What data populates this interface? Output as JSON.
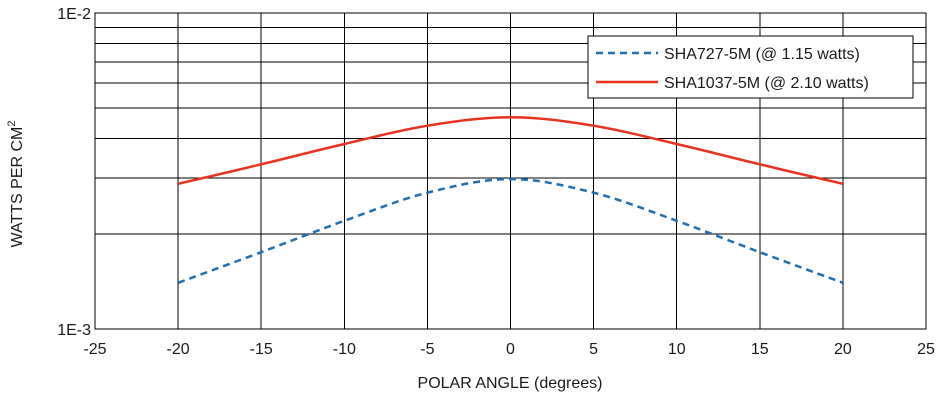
{
  "chart_data": {
    "type": "line",
    "title": "",
    "xlabel": "POLAR ANGLE (degrees)",
    "ylabel": "WATTS PER CM",
    "ylabel_superscript": "2",
    "xlim": [
      -25,
      25
    ],
    "ylim": [
      0.001,
      0.01
    ],
    "yscale": "log",
    "grid": true,
    "x_ticks": [
      "-25",
      "-20",
      "-15",
      "-10",
      "-5",
      "0",
      "5",
      "10",
      "15",
      "20",
      "25"
    ],
    "x_tick_values": [
      -25,
      -20,
      -15,
      -10,
      -5,
      0,
      5,
      10,
      15,
      20,
      25
    ],
    "y_ticks": [
      "1E-3",
      "1E-2"
    ],
    "y_tick_values": [
      0.001,
      0.01
    ],
    "y_gridlines": [
      0.001,
      0.002,
      0.003,
      0.004,
      0.005,
      0.006,
      0.007,
      0.008,
      0.009,
      0.01
    ],
    "legend_position": "top-right",
    "x": [
      -20,
      -15,
      -10,
      -5,
      0,
      5,
      10,
      15,
      20
    ],
    "series": [
      {
        "name": "SHA727-5M (@ 1.15 watts)",
        "color": "#1f6fb2",
        "style": "dashed",
        "values": [
          0.0014,
          0.00175,
          0.0022,
          0.0027,
          0.00298,
          0.0027,
          0.0022,
          0.00175,
          0.0014
        ]
      },
      {
        "name": "SHA1037-5M (@ 2.10 watts)",
        "color": "#e8321e",
        "style": "solid",
        "values": [
          0.00288,
          0.00332,
          0.00385,
          0.0044,
          0.00468,
          0.0044,
          0.00385,
          0.00332,
          0.00288
        ]
      }
    ]
  }
}
